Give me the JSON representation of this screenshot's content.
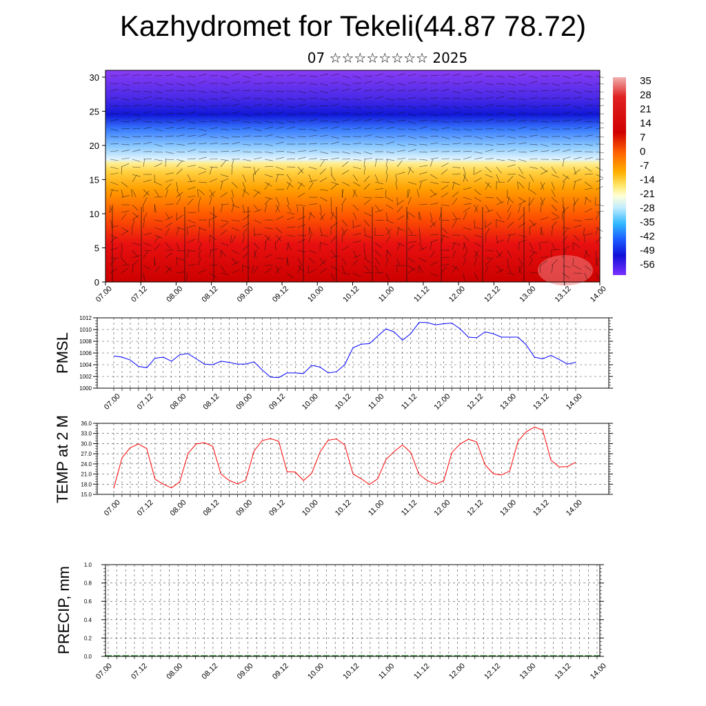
{
  "header": {
    "title": "Kazhydromet for Tekeli(44.87 78.72)",
    "subtitle": "07 ☆☆☆☆☆☆☆☆ 2025"
  },
  "chart_data": [
    {
      "type": "heatmap",
      "description_panel": "cross-section",
      "x_tick_labels": [
        "07.00",
        "07.12",
        "08.00",
        "08.12",
        "09.00",
        "09.12",
        "10.00",
        "10.12",
        "11.00",
        "11.12",
        "12.00",
        "12.12",
        "13.00",
        "13.12",
        "14.00"
      ],
      "ylim": [
        0,
        31
      ],
      "y_ticks": [
        0,
        5,
        10,
        15,
        20,
        25,
        30
      ],
      "colorbar_labels": [
        "35",
        "28",
        "21",
        "14",
        "7",
        "0",
        "-7",
        "-14",
        "-21",
        "-28",
        "-35",
        "-42",
        "-49",
        "-56"
      ],
      "colorbar_colors": [
        "#f0a0a0",
        "#e02020",
        "#c80000",
        "#ff6a00",
        "#ffb000",
        "#ffe060",
        "#ffffd0",
        "#c8f0ff",
        "#40c0ff",
        "#2060ff",
        "#1010d0",
        "#7a30ff"
      ],
      "layers": [
        {
          "height_range": [
            0,
            10
          ],
          "color": "#e01010"
        },
        {
          "height_range": [
            10,
            15
          ],
          "color": "#ff9a00"
        },
        {
          "height_range": [
            15,
            18
          ],
          "color": "#ffe66a"
        },
        {
          "height_range": [
            18,
            22
          ],
          "color": "#5aa8ff"
        },
        {
          "height_range": [
            22,
            26
          ],
          "color": "#1a20e0"
        },
        {
          "height_range": [
            26,
            31
          ],
          "color": "#7a35f0"
        }
      ]
    },
    {
      "type": "line",
      "ylabel": "PMSL",
      "ylim": [
        1000,
        1012
      ],
      "y_ticks": [
        "1000",
        "1002",
        "1004",
        "1006",
        "1008",
        "1010",
        "1012"
      ],
      "x_tick_labels": [
        "07.00",
        "07.12",
        "08.00",
        "08.12",
        "09.00",
        "09.12",
        "10.00",
        "10.12",
        "11.00",
        "11.12",
        "12.00",
        "12.12",
        "13.00",
        "13.12",
        "14.00"
      ],
      "color": "#0000ff",
      "series": [
        {
          "values": [
            1005.5,
            1005.3,
            1004.8,
            1003.7,
            1003.5,
            1005.1,
            1005.3,
            1004.6,
            1005.7,
            1005.9,
            1005.0,
            1004.1,
            1004.0,
            1004.6,
            1004.4,
            1004.1,
            1004.1,
            1004.5,
            1003.1,
            1001.9,
            1001.8,
            1002.6,
            1002.6,
            1002.5,
            1003.9,
            1003.6,
            1002.6,
            1002.8,
            1004.0,
            1006.9,
            1007.5,
            1007.6,
            1008.9,
            1010.1,
            1009.6,
            1008.2,
            1009.3,
            1011.2,
            1011.2,
            1010.8,
            1011.0,
            1011.1,
            1010.1,
            1008.7,
            1008.6,
            1009.6,
            1009.3,
            1008.7,
            1008.7,
            1008.7,
            1007.4,
            1005.3,
            1005.0,
            1005.6,
            1004.9,
            1004.1,
            1004.4
          ]
        }
      ]
    },
    {
      "type": "line",
      "ylabel": "TEMP at 2 M",
      "ylim": [
        15,
        36
      ],
      "y_ticks": [
        "15.0",
        "18.0",
        "21.0",
        "24.0",
        "27.0",
        "30.0",
        "33.0",
        "36.0"
      ],
      "x_tick_labels": [
        "07.00",
        "07.12",
        "08.00",
        "08.12",
        "09.00",
        "09.12",
        "10.00",
        "10.12",
        "11.00",
        "11.12",
        "12.00",
        "12.12",
        "13.00",
        "13.12",
        "14.00"
      ],
      "color": "#ff0000",
      "series": [
        {
          "values": [
            16.8,
            25.8,
            28.8,
            29.9,
            28.5,
            19.5,
            18.0,
            16.9,
            18.7,
            27.1,
            29.9,
            30.3,
            29.2,
            21.0,
            19.1,
            18.1,
            19.2,
            27.8,
            30.9,
            31.5,
            30.7,
            21.7,
            21.6,
            19.1,
            21.2,
            27.5,
            31.0,
            31.4,
            29.6,
            21.0,
            19.6,
            17.9,
            19.6,
            25.3,
            27.7,
            29.6,
            27.4,
            20.9,
            19.1,
            18.0,
            19.0,
            27.4,
            29.9,
            31.3,
            30.5,
            23.8,
            21.1,
            20.7,
            21.9,
            30.7,
            33.5,
            34.9,
            34.0,
            25.1,
            23.1,
            23.2,
            24.5
          ]
        }
      ]
    },
    {
      "type": "bar",
      "ylabel": "PRECIP, mm",
      "ylim": [
        0,
        1
      ],
      "y_ticks": [
        "0.0",
        "0.2",
        "0.4",
        "0.6",
        "0.8",
        "1.0"
      ],
      "x_tick_labels": [
        "07.00",
        "07.12",
        "08.00",
        "08.12",
        "09.00",
        "09.12",
        "10.00",
        "10.12",
        "11.00",
        "11.12",
        "12.00",
        "12.12",
        "13.00",
        "13.12",
        "14.00"
      ],
      "color": "#006400",
      "series": [
        {
          "values": [
            0,
            0,
            0,
            0,
            0,
            0,
            0,
            0,
            0,
            0,
            0,
            0,
            0,
            0,
            0,
            0,
            0,
            0,
            0,
            0,
            0,
            0,
            0,
            0,
            0,
            0,
            0,
            0,
            0,
            0,
            0,
            0,
            0,
            0,
            0,
            0,
            0,
            0,
            0,
            0,
            0,
            0,
            0,
            0,
            0,
            0,
            0,
            0,
            0,
            0,
            0,
            0,
            0,
            0,
            0,
            0,
            0
          ]
        }
      ]
    }
  ]
}
